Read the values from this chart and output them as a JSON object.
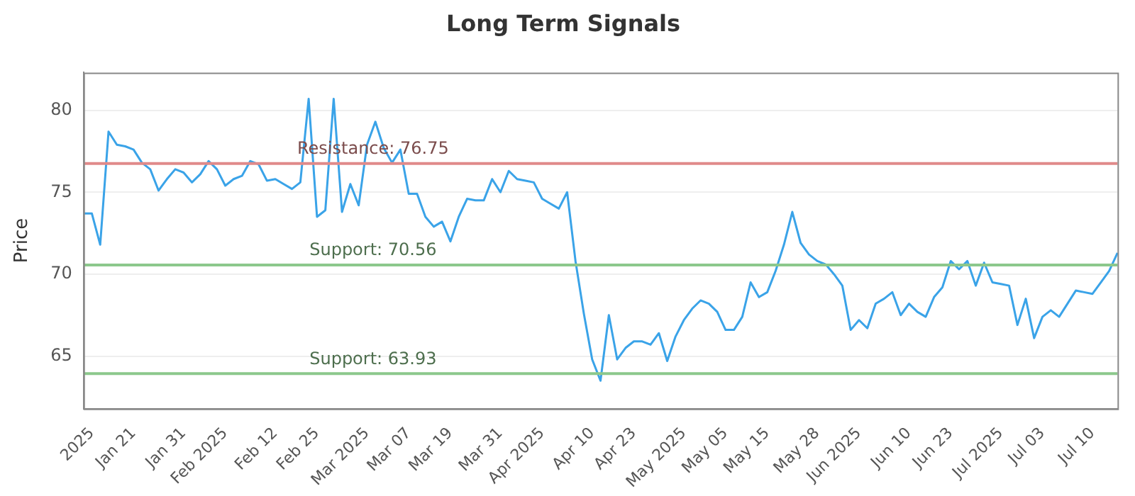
{
  "chart_data": {
    "type": "line",
    "title": "Long Term Signals",
    "ylabel": "Price",
    "categories": [
      null,
      "2025",
      null,
      null,
      null,
      null,
      "Jan 21",
      null,
      null,
      null,
      null,
      null,
      "Jan 31",
      null,
      null,
      null,
      null,
      "Feb 2025",
      null,
      null,
      null,
      null,
      null,
      "Feb 12",
      null,
      null,
      null,
      null,
      "Feb 25",
      null,
      null,
      null,
      null,
      null,
      "Mar 2025",
      null,
      null,
      null,
      null,
      "Mar 07",
      null,
      null,
      null,
      null,
      "Mar 19",
      null,
      null,
      null,
      null,
      null,
      "Mar 31",
      null,
      null,
      null,
      null,
      "Apr 2025",
      null,
      null,
      null,
      null,
      null,
      "Apr 10",
      null,
      null,
      null,
      null,
      "Apr 23",
      null,
      null,
      null,
      null,
      null,
      "May 2025",
      null,
      null,
      null,
      null,
      "May 05",
      null,
      null,
      null,
      null,
      "May 15",
      null,
      null,
      null,
      null,
      null,
      "May 28",
      null,
      null,
      null,
      null,
      "Jun 2025",
      null,
      null,
      null,
      null,
      null,
      "Jun 10",
      null,
      null,
      null,
      null,
      "Jun 23",
      null,
      null,
      null,
      null,
      null,
      "Jul 2025",
      null,
      null,
      null,
      null,
      "Jul 03",
      null,
      null,
      null,
      null,
      null,
      "Jul 10",
      null,
      null,
      null
    ],
    "series": [
      {
        "color": "#3aa3e8",
        "values": [
          73.7,
          73.7,
          71.8,
          78.7,
          77.9,
          77.8,
          77.6,
          76.8,
          76.4,
          75.1,
          75.8,
          76.4,
          76.2,
          75.6,
          76.1,
          76.9,
          76.4,
          75.4,
          75.8,
          76.0,
          76.9,
          76.7,
          75.7,
          75.8,
          75.5,
          75.2,
          75.6,
          80.7,
          73.5,
          73.9,
          80.7,
          73.8,
          75.5,
          74.2,
          77.9,
          79.3,
          77.7,
          76.8,
          77.6,
          74.9,
          74.9,
          73.5,
          72.9,
          73.2,
          72.0,
          73.5,
          74.6,
          74.5,
          74.5,
          75.8,
          75.0,
          76.3,
          75.8,
          75.7,
          75.6,
          74.6,
          74.3,
          74.0,
          75.0,
          70.8,
          67.6,
          64.8,
          63.5,
          67.5,
          64.8,
          65.5,
          65.9,
          65.9,
          65.7,
          66.4,
          64.7,
          66.2,
          67.2,
          67.9,
          68.4,
          68.2,
          67.7,
          66.6,
          66.6,
          67.4,
          69.5,
          68.6,
          68.9,
          70.2,
          71.8,
          73.8,
          71.9,
          71.2,
          70.8,
          70.6,
          70.0,
          69.3,
          66.6,
          67.2,
          66.7,
          68.2,
          68.5,
          68.9,
          67.5,
          68.2,
          67.7,
          67.4,
          68.6,
          69.2,
          70.8,
          70.3,
          70.8,
          69.3,
          70.7,
          69.5,
          69.4,
          69.3,
          66.9,
          68.5,
          66.1,
          67.4,
          67.8,
          67.4,
          68.2,
          69.0,
          68.9,
          68.8,
          69.5,
          70.2,
          71.3
        ]
      }
    ],
    "ylim": [
      61.8,
      82.3
    ],
    "yticks": [
      65,
      70,
      75,
      80
    ],
    "grid": "y",
    "legend": false,
    "marker": "none",
    "line_style": "solid",
    "ref_lines": [
      {
        "axis": "y",
        "value": 76.75,
        "label": "Resistance: 76.75",
        "color": "#e08a8a"
      },
      {
        "axis": "y",
        "value": 70.56,
        "label": "Support: 70.56",
        "color": "#8cc88c"
      },
      {
        "axis": "y",
        "value": 63.93,
        "label": "Support: 63.93",
        "color": "#8cc88c"
      }
    ]
  }
}
